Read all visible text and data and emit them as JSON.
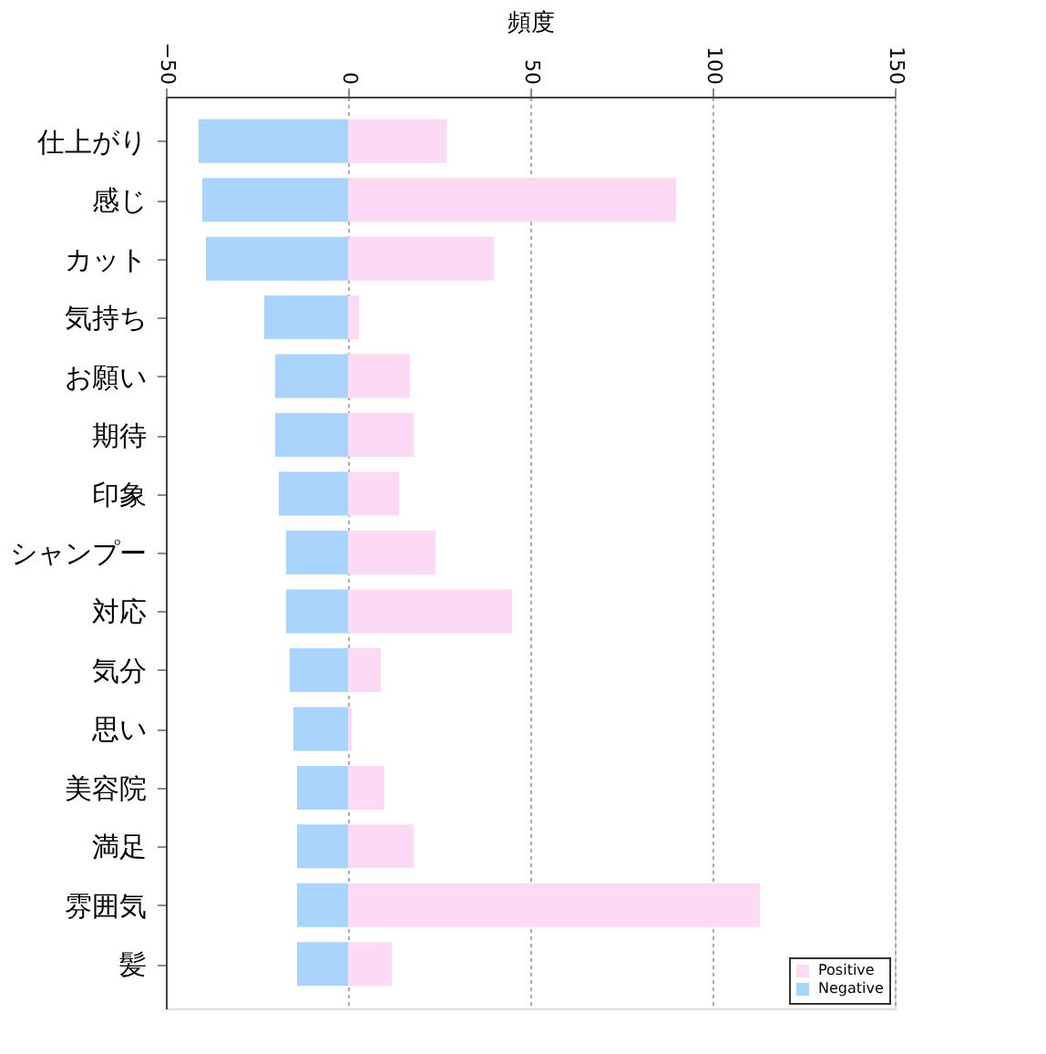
{
  "chart_data": {
    "type": "bar",
    "orientation": "horizontal",
    "xlabel": "頻度",
    "categories": [
      "仕上がり",
      "感じ",
      "カット",
      "気持ち",
      "お願い",
      "期待",
      "印象",
      "シャンプー",
      "対応",
      "気分",
      "思い",
      "美容院",
      "満足",
      "雰囲気",
      "髪"
    ],
    "series": [
      {
        "name": "Positive",
        "color": "#fcd9f4",
        "values": [
          27,
          90,
          40,
          3,
          17,
          18,
          14,
          24,
          45,
          9,
          1,
          10,
          18,
          113,
          12
        ]
      },
      {
        "name": "Negative",
        "color": "#aad4fb",
        "values": [
          -41,
          -40,
          -39,
          -23,
          -20,
          -20,
          -19,
          -17,
          -17,
          -16,
          -15,
          -14,
          -14,
          -14,
          -14
        ]
      }
    ],
    "xlim": [
      -50,
      150
    ],
    "xticks": [
      -50,
      0,
      50,
      100,
      150
    ],
    "stacked": true,
    "grid": "x",
    "legend": "bottom right"
  }
}
